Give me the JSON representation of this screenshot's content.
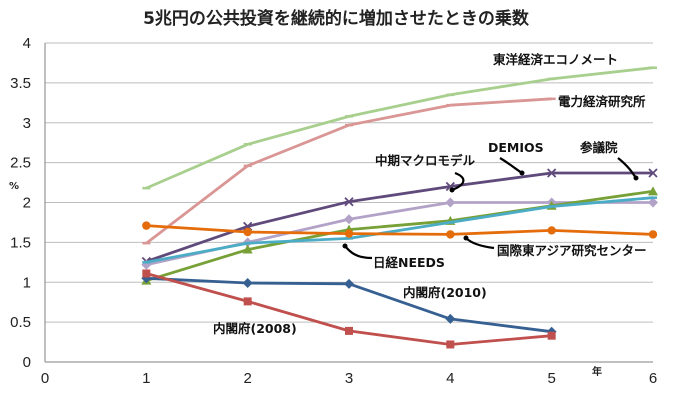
{
  "chart_data": {
    "type": "line",
    "title": "5兆円の公共投資を継続的に増加させたときの乗数",
    "xlabel": "年",
    "ylabel": "%",
    "xlim": [
      0,
      6
    ],
    "ylim": [
      0,
      4
    ],
    "xticks": [
      "0",
      "1",
      "2",
      "3",
      "4",
      "5",
      "6"
    ],
    "yticks": [
      "0",
      "0.5",
      "1",
      "1.5",
      "2",
      "2.5",
      "3",
      "3.5",
      "4"
    ],
    "grid": true,
    "series": [
      {
        "name": "東洋経済エコノメート",
        "color": "#a8cf8e",
        "marker": "dash",
        "x": [
          1,
          2,
          3,
          4,
          5,
          6
        ],
        "y": [
          2.18,
          2.73,
          3.08,
          3.35,
          3.55,
          3.69
        ]
      },
      {
        "name": "電力経済研究所",
        "color": "#d99694",
        "marker": "dash",
        "x": [
          1,
          2,
          3,
          4,
          5
        ],
        "y": [
          1.49,
          2.46,
          2.97,
          3.22,
          3.3
        ]
      },
      {
        "name": "DEMIOS",
        "color": "#604a7b",
        "marker": "x",
        "x": [
          1,
          2,
          3,
          4,
          5,
          6
        ],
        "y": [
          1.26,
          1.7,
          2.01,
          2.2,
          2.37,
          2.37
        ]
      },
      {
        "name": "中期マクロモデル",
        "color": "#b3a2c7",
        "marker": "diamond",
        "x": [
          1,
          2,
          3,
          4,
          5,
          6
        ],
        "y": [
          1.22,
          1.5,
          1.79,
          2.0,
          2.0,
          2.0
        ]
      },
      {
        "name": "参議院",
        "color": "#77a037",
        "marker": "triangle",
        "x": [
          1,
          2,
          3,
          4,
          5,
          6
        ],
        "y": [
          1.02,
          1.41,
          1.66,
          1.77,
          1.96,
          2.14
        ]
      },
      {
        "name": "日経NEEDS",
        "color": "#4bacc6",
        "marker": "dash",
        "x": [
          1,
          2,
          3,
          4,
          5,
          6
        ],
        "y": [
          1.25,
          1.49,
          1.55,
          1.75,
          1.95,
          2.06
        ]
      },
      {
        "name": "国際東アジア研究センター",
        "color": "#e46c0a",
        "marker": "circle",
        "x": [
          1,
          2,
          3,
          4,
          5,
          6
        ],
        "y": [
          1.71,
          1.63,
          1.61,
          1.6,
          1.65,
          1.6
        ]
      },
      {
        "name": "内閣府(2010)",
        "color": "#376092",
        "marker": "diamond",
        "x": [
          1,
          2,
          3,
          4,
          5
        ],
        "y": [
          1.05,
          0.99,
          0.98,
          0.54,
          0.38
        ]
      },
      {
        "name": "内閣府(2008)",
        "color": "#c0504d",
        "marker": "square",
        "x": [
          1,
          2,
          3,
          4,
          5
        ],
        "y": [
          1.11,
          0.76,
          0.39,
          0.22,
          0.33
        ]
      }
    ]
  }
}
